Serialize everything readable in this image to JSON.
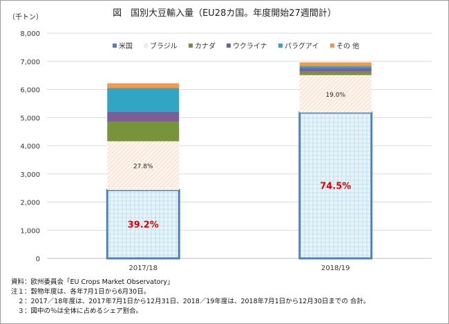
{
  "title": "図　国別大豆輸入量（EU28カ国。年度開始27週間計）",
  "unit_label": "（千トン）",
  "chart_data": {
    "type": "bar",
    "stacked": true,
    "categories": [
      "2017/18",
      "2018/19"
    ],
    "series": [
      {
        "name": "米国",
        "color": "#dbeef6",
        "values": [
          2430,
          5180
        ]
      },
      {
        "name": "ブラジル",
        "color": "#fde9d9",
        "values": [
          1730,
          1330
        ]
      },
      {
        "name": "カナダ",
        "color": "#77933c",
        "values": [
          700,
          120
        ]
      },
      {
        "name": "ウクライナ",
        "color": "#7b5e97",
        "values": [
          350,
          130
        ]
      },
      {
        "name": "パラグアイ",
        "color": "#31a5c4",
        "values": [
          840,
          80
        ]
      },
      {
        "name": "その 他",
        "color": "#f79646",
        "values": [
          170,
          120
        ]
      }
    ],
    "annotations": [
      {
        "category": "2017/18",
        "series": "米国",
        "text": "39.2%"
      },
      {
        "category": "2017/18",
        "series": "ブラジル",
        "text": "27.8%"
      },
      {
        "category": "2018/19",
        "series": "米国",
        "text": "74.5%"
      },
      {
        "category": "2018/19",
        "series": "ブラジル",
        "text": "19.0%"
      }
    ],
    "ylim": [
      0,
      8000
    ],
    "yticks": [
      "0",
      "1,000",
      "2,000",
      "3,000",
      "4,000",
      "5,000",
      "6,000",
      "7,000",
      "8,000"
    ],
    "grid": true,
    "legend_position": "top"
  },
  "notes": [
    "資料：欧州委員会「EU Crops Market Observatory」",
    "注１：穀物年度は、各年7月1日から6月30日。",
    "　２：2017／18年度は、2017年7月1日から12月31日、2018／19年度は、2018年7月1日から12月30日までの 合計。",
    "　３：図中の％は全体に占めるシェア割合。"
  ]
}
